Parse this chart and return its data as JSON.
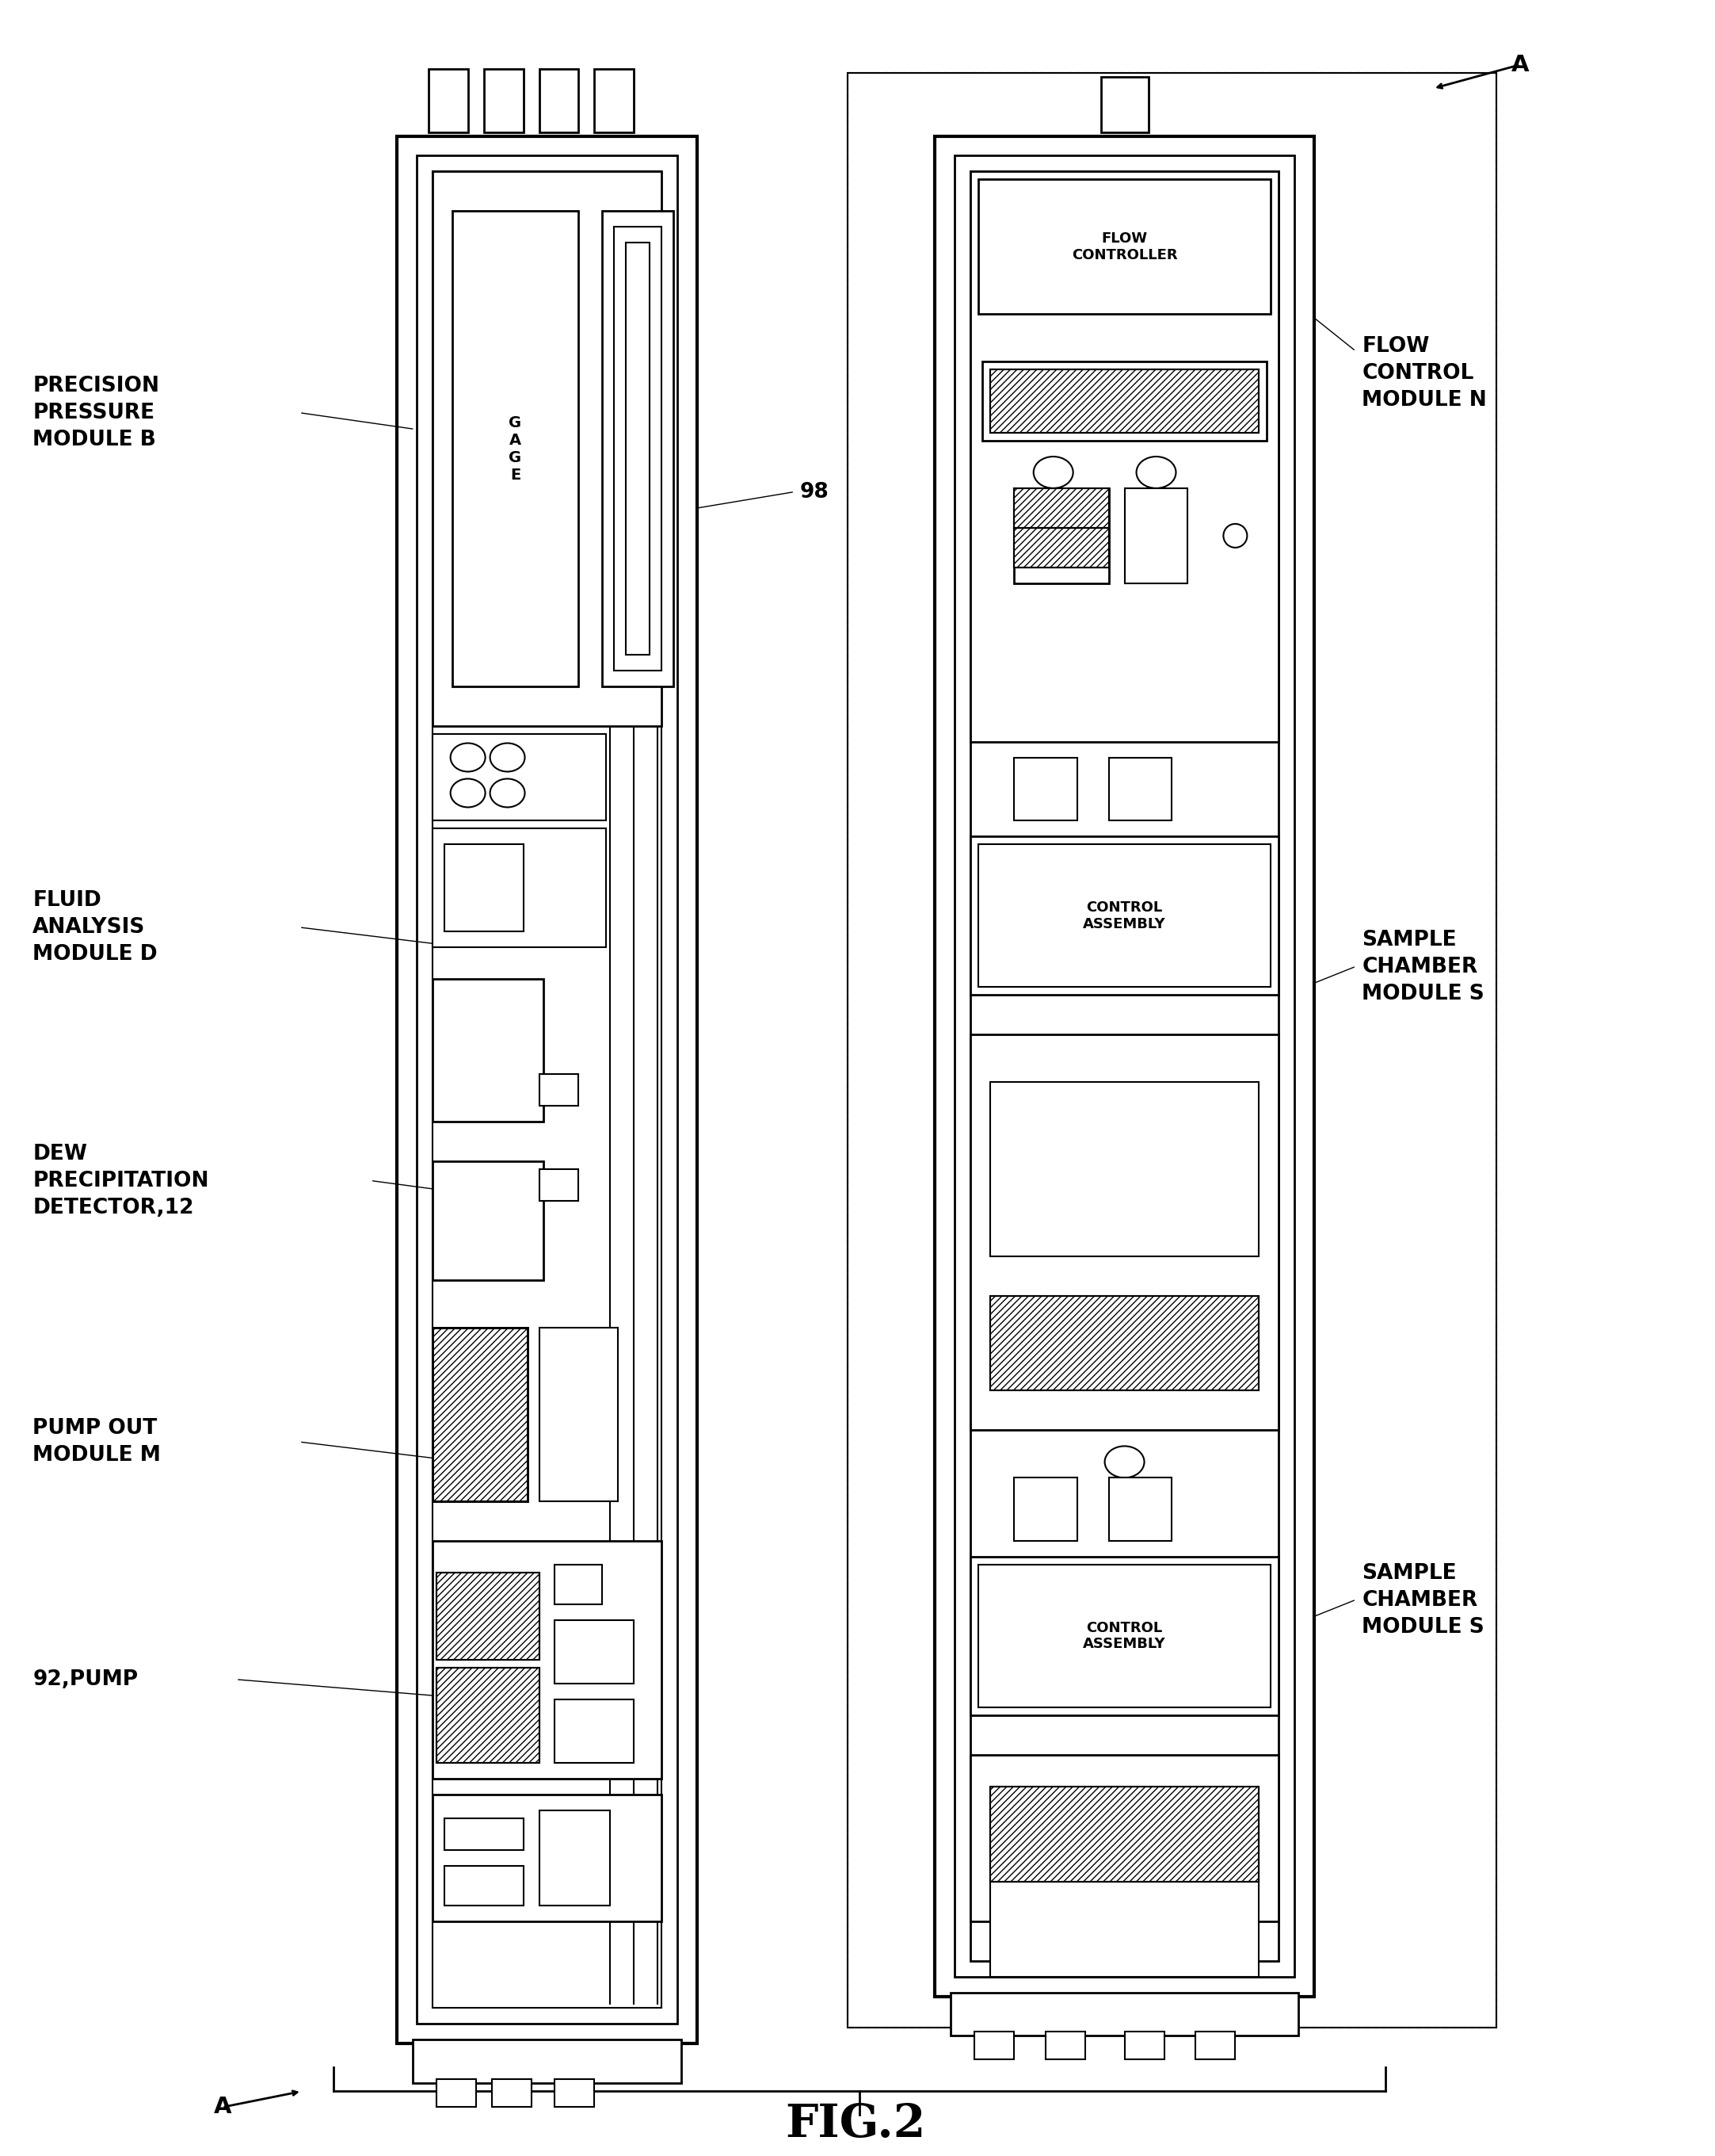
{
  "bg_color": "#ffffff",
  "line_color": "#000000",
  "title": "FIG.2",
  "title_fontsize": 42,
  "label_fontsize": 19,
  "fig_width": 21.65,
  "fig_height": 27.2,
  "labels": {
    "precision_pressure": "PRECISION\nPRESSURE\nMODULE B",
    "fluid_analysis": "FLUID\nANALYSIS\nMODULE D",
    "dew_precip": "DEW\nPRECIPITATION\nDETECTOR,12",
    "pump_out": "PUMP OUT\nMODULE M",
    "pump92": "92,PUMP",
    "ref98": "98",
    "flow_control_module": "FLOW\nCONTROL\nMODULE N",
    "flow_controller": "FLOW\nCONTROLLER",
    "control_assembly1": "CONTROL\nASSEMBLY",
    "control_assembly2": "CONTROL\nASSEMBLY",
    "sample_chamber1": "SAMPLE\nCHAMBER\nMODULE S",
    "sample_chamber2": "SAMPLE\nCHAMBER\nMODULE S",
    "ref_A_top": "A",
    "ref_A_bottom": "A"
  }
}
